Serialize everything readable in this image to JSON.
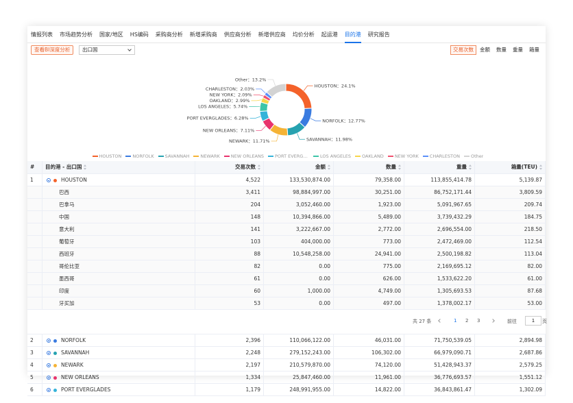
{
  "tabs": {
    "items": [
      "情报列表",
      "市场趋势分析",
      "国家/地区",
      "HS编码",
      "采购商分析",
      "新增采购商",
      "供应商分析",
      "新增供应商",
      "均价分析",
      "起运港",
      "目的港",
      "研究报告"
    ],
    "active": 10
  },
  "toolbar": {
    "bi_button": "查看BI深度分析",
    "select": "出口国",
    "toggles": [
      "交易次数",
      "金额",
      "数量",
      "重量",
      "箱量"
    ],
    "active": 0
  },
  "chart_data": {
    "type": "pie",
    "donut": true,
    "categories": [
      "HOUSTON",
      "NORFOLK",
      "SAVANNAH",
      "NEWARK",
      "NEW ORLEANS",
      "PORT EVERGLADES",
      "LOS ANGELES",
      "OAKLAND",
      "NEW YORK",
      "CHARLESTON",
      "Other"
    ],
    "values": [
      24.1,
      12.77,
      11.98,
      11.71,
      7.11,
      6.28,
      5.74,
      2.99,
      2.09,
      2.03,
      13.2
    ],
    "value_labels": [
      "HOUSTON：24.1%",
      "NORFOLK：12.77%",
      "SAVANNAH：11.98%",
      "NEWARK：11.71%",
      "NEW ORLEANS：7.11%",
      "PORT EVERGLADES：6.28%",
      "LOS ANGELES：5.74%",
      "OAKLAND：2.99%",
      "NEW YORK：2.09%",
      "CHARLESTON：2.03%",
      "Other：13.2%"
    ],
    "colors": [
      "#f4622a",
      "#3a7be0",
      "#26a2b0",
      "#f5b335",
      "#e8336d",
      "#35b3d9",
      "#3cc4a8",
      "#f7d54a",
      "#f0506e",
      "#5b8ff9",
      "#d3d3d3"
    ],
    "legend": "bottom"
  },
  "table": {
    "headers": [
      "#",
      "目的港 - 出口国",
      "交易次数",
      "金额",
      "数量",
      "重量",
      "箱量(TEU)"
    ],
    "rows": [
      {
        "cells": [
          "1",
          "HOUSTON",
          "4,522",
          "133,530,874.00",
          "79,358.00",
          "113,855,414.78",
          "5,139.87"
        ],
        "expanded": true,
        "children": [
          [
            "巴西",
            "3,411",
            "98,884,997.00",
            "30,251.00",
            "86,752,171.44",
            "3,809.59"
          ],
          [
            "巴拿马",
            "204",
            "3,052,460.00",
            "1,923.00",
            "5,091,967.65",
            "209.74"
          ],
          [
            "中国",
            "148",
            "10,394,866.00",
            "5,489.00",
            "3,739,432.29",
            "184.75"
          ],
          [
            "意大利",
            "141",
            "3,222,667.00",
            "2,772.00",
            "2,696,554.00",
            "218.50"
          ],
          [
            "葡萄牙",
            "103",
            "404,000.00",
            "773.00",
            "2,472,469.00",
            "112.54"
          ],
          [
            "西班牙",
            "88",
            "10,548,258.00",
            "24,941.00",
            "2,500,198.82",
            "113.04"
          ],
          [
            "哥伦比亚",
            "82",
            "0.00",
            "775.00",
            "2,169,695.12",
            "82.00"
          ],
          [
            "墨西哥",
            "61",
            "0.00",
            "626.00",
            "1,533,622.20",
            "61.00"
          ],
          [
            "印度",
            "60",
            "1,000.00",
            "4,749.00",
            "1,305,693.53",
            "87.68"
          ],
          [
            "牙买加",
            "53",
            "0.00",
            "497.00",
            "1,378,002.17",
            "53.00"
          ]
        ]
      },
      {
        "cells": [
          "2",
          "NORFOLK",
          "2,396",
          "110,066,122.00",
          "46,031.00",
          "71,750,539.05",
          "2,894.98"
        ]
      },
      {
        "cells": [
          "3",
          "SAVANNAH",
          "2,248",
          "279,152,243.00",
          "106,302.00",
          "66,979,090.71",
          "2,687.86"
        ]
      },
      {
        "cells": [
          "4",
          "NEWARK",
          "2,197",
          "210,579,870.00",
          "74,120.00",
          "51,428,943.37",
          "2,579.25"
        ]
      },
      {
        "cells": [
          "5",
          "NEW ORLEANS",
          "1,334",
          "25,847,460.00",
          "11,961.00",
          "36,776,693.57",
          "1,551.12"
        ]
      },
      {
        "cells": [
          "6",
          "PORT EVERGLADES",
          "1,179",
          "248,991,955.00",
          "14,822.00",
          "36,843,861.47",
          "1,302.09"
        ]
      }
    ],
    "pagination": {
      "total": "共 27 条",
      "pages": [
        "1",
        "2",
        "3"
      ],
      "current": 0,
      "goto": "前往",
      "goto_value": "1",
      "unit": "页"
    }
  }
}
